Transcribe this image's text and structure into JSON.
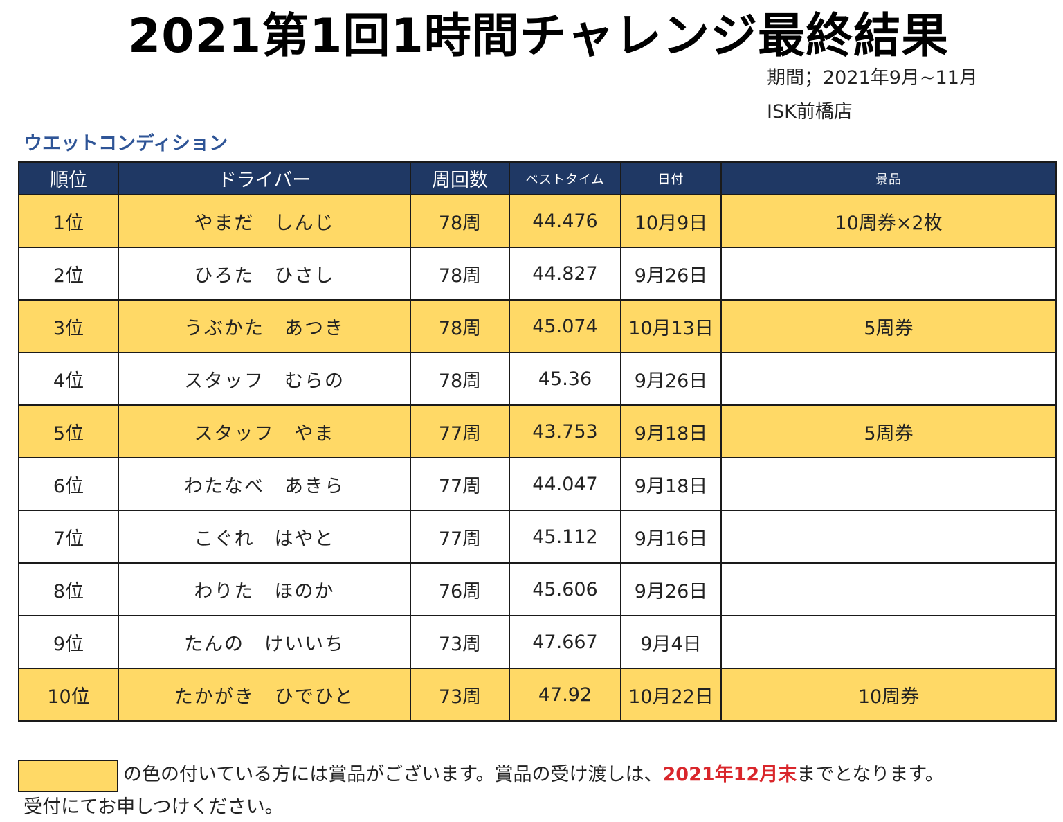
{
  "title": "2021第1回1時間チャレンジ最終結果",
  "period": "期間；2021年9月~11月",
  "store": "ISK前橋店",
  "section_label": "ウエットコンディション",
  "colors": {
    "header_bg": "#1f3864",
    "prize_highlight": "#ffd966",
    "section_label": "#2f5597",
    "deadline_text": "#d9262b"
  },
  "table": {
    "headers": {
      "rank": "順位",
      "driver": "ドライバー",
      "laps": "周回数",
      "best_time": "ベストタイム",
      "date": "日付",
      "prize": "景品"
    },
    "rows": [
      {
        "rank": "1位",
        "driver": "やまだ　しんじ",
        "laps": "78周",
        "best_time": "44.476",
        "date": "10月9日",
        "prize": "10周券×2枚",
        "highlight": true
      },
      {
        "rank": "2位",
        "driver": "ひろた　ひさし",
        "laps": "78周",
        "best_time": "44.827",
        "date": "9月26日",
        "prize": "",
        "highlight": false
      },
      {
        "rank": "3位",
        "driver": "うぶかた　あつき",
        "laps": "78周",
        "best_time": "45.074",
        "date": "10月13日",
        "prize": "5周券",
        "highlight": true
      },
      {
        "rank": "4位",
        "driver": "スタッフ　むらの",
        "laps": "78周",
        "best_time": "45.36",
        "date": "9月26日",
        "prize": "",
        "highlight": false
      },
      {
        "rank": "5位",
        "driver": "スタッフ　やま",
        "laps": "77周",
        "best_time": "43.753",
        "date": "9月18日",
        "prize": "5周券",
        "highlight": true
      },
      {
        "rank": "6位",
        "driver": "わたなべ　あきら",
        "laps": "77周",
        "best_time": "44.047",
        "date": "9月18日",
        "prize": "",
        "highlight": false
      },
      {
        "rank": "7位",
        "driver": "こぐれ　はやと",
        "laps": "77周",
        "best_time": "45.112",
        "date": "9月16日",
        "prize": "",
        "highlight": false
      },
      {
        "rank": "8位",
        "driver": "わりた　ほのか",
        "laps": "76周",
        "best_time": "45.606",
        "date": "9月26日",
        "prize": "",
        "highlight": false
      },
      {
        "rank": "9位",
        "driver": "たんの　けいいち",
        "laps": "73周",
        "best_time": "47.667",
        "date": "9月4日",
        "prize": "",
        "highlight": false
      },
      {
        "rank": "10位",
        "driver": "たかがき　ひでひと",
        "laps": "73周",
        "best_time": "47.92",
        "date": "10月22日",
        "prize": "10周券",
        "highlight": true
      }
    ]
  },
  "footer": {
    "note_prefix": "の色の付いている方には賞品がございます。賞品の受け渡しは、",
    "deadline": "2021年12月末",
    "note_suffix": "までとなります。",
    "note_line2": "受付にてお申しつけください。"
  }
}
